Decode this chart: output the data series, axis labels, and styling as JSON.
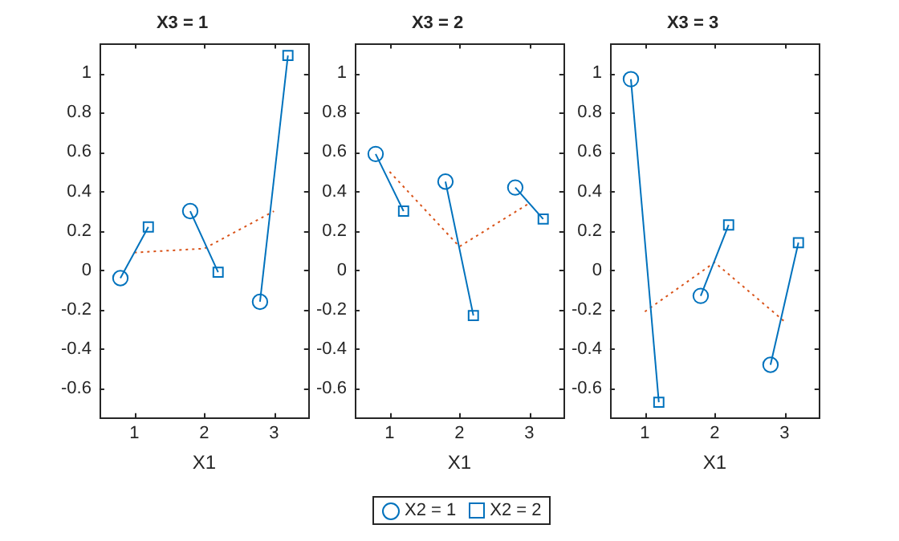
{
  "chart_data": [
    {
      "type": "scatter",
      "title": "X3 = 1",
      "xlabel": "X1",
      "xlim": [
        0.5,
        3.5
      ],
      "xticks": [
        1,
        2,
        3
      ],
      "ylim": [
        -0.75,
        1.15
      ],
      "yticks": [
        -0.6,
        -0.4,
        -0.2,
        0,
        0.2,
        0.4,
        0.6,
        0.8,
        1
      ],
      "grid": false,
      "legend": false,
      "series": [
        {
          "type": "line",
          "color": "#0072bd",
          "marker": "none",
          "line_style": "solid",
          "x": [
            0.8,
            1.2
          ],
          "values": [
            -0.04,
            0.22
          ]
        },
        {
          "type": "line",
          "color": "#0072bd",
          "marker": "none",
          "line_style": "solid",
          "x": [
            1.8,
            2.2
          ],
          "values": [
            0.3,
            -0.01
          ]
        },
        {
          "type": "line",
          "color": "#0072bd",
          "marker": "none",
          "line_style": "solid",
          "x": [
            2.8,
            3.2
          ],
          "values": [
            -0.16,
            1.09
          ]
        },
        {
          "type": "line",
          "color": "#d95319",
          "marker": "none",
          "line_style": "dotted",
          "x": [
            1,
            2,
            3
          ],
          "values": [
            0.09,
            0.11,
            0.3
          ]
        },
        {
          "type": "scatter",
          "color": "#0072bd",
          "marker": "circle",
          "x": [
            0.8,
            1.8,
            2.8
          ],
          "values": [
            -0.04,
            0.3,
            -0.16
          ]
        },
        {
          "type": "scatter",
          "color": "#0072bd",
          "marker": "square",
          "x": [
            1.2,
            2.2,
            3.2
          ],
          "values": [
            0.22,
            -0.01,
            1.09
          ]
        }
      ]
    },
    {
      "type": "scatter",
      "title": "X3 = 2",
      "xlabel": "X1",
      "xlim": [
        0.5,
        3.5
      ],
      "xticks": [
        1,
        2,
        3
      ],
      "ylim": [
        -0.75,
        1.15
      ],
      "yticks": [
        -0.6,
        -0.4,
        -0.2,
        0,
        0.2,
        0.4,
        0.6,
        0.8,
        1
      ],
      "grid": false,
      "legend": "bottom",
      "series": [
        {
          "type": "line",
          "color": "#0072bd",
          "marker": "none",
          "line_style": "solid",
          "x": [
            0.8,
            1.2
          ],
          "values": [
            0.59,
            0.3
          ]
        },
        {
          "type": "line",
          "color": "#0072bd",
          "marker": "none",
          "line_style": "solid",
          "x": [
            1.8,
            2.2
          ],
          "values": [
            0.45,
            -0.23
          ]
        },
        {
          "type": "line",
          "color": "#0072bd",
          "marker": "none",
          "line_style": "solid",
          "x": [
            2.8,
            3.2
          ],
          "values": [
            0.42,
            0.26
          ]
        },
        {
          "type": "line",
          "color": "#d95319",
          "marker": "none",
          "line_style": "dotted",
          "x": [
            1,
            2,
            3
          ],
          "values": [
            0.5,
            0.12,
            0.34
          ]
        },
        {
          "type": "scatter",
          "name": "X2 = 1",
          "color": "#0072bd",
          "marker": "circle",
          "x": [
            0.8,
            1.8,
            2.8
          ],
          "values": [
            0.59,
            0.45,
            0.42
          ]
        },
        {
          "type": "scatter",
          "name": "X2 = 2",
          "color": "#0072bd",
          "marker": "square",
          "x": [
            1.2,
            2.2,
            3.2
          ],
          "values": [
            0.3,
            -0.23,
            0.26
          ]
        }
      ]
    },
    {
      "type": "scatter",
      "title": "X3 = 3",
      "xlabel": "X1",
      "xlim": [
        0.5,
        3.5
      ],
      "xticks": [
        1,
        2,
        3
      ],
      "ylim": [
        -0.75,
        1.15
      ],
      "yticks": [
        -0.6,
        -0.4,
        -0.2,
        0,
        0.2,
        0.4,
        0.6,
        0.8,
        1
      ],
      "grid": false,
      "legend": false,
      "series": [
        {
          "type": "line",
          "color": "#0072bd",
          "marker": "none",
          "line_style": "solid",
          "x": [
            0.8,
            1.2
          ],
          "values": [
            0.97,
            -0.67
          ]
        },
        {
          "type": "line",
          "color": "#0072bd",
          "marker": "none",
          "line_style": "solid",
          "x": [
            1.8,
            2.2
          ],
          "values": [
            -0.13,
            0.23
          ]
        },
        {
          "type": "line",
          "color": "#0072bd",
          "marker": "none",
          "line_style": "solid",
          "x": [
            2.8,
            3.2
          ],
          "values": [
            -0.48,
            0.14
          ]
        },
        {
          "type": "line",
          "color": "#d95319",
          "marker": "none",
          "line_style": "dotted",
          "x": [
            1,
            2,
            3
          ],
          "values": [
            -0.21,
            0.04,
            -0.26
          ]
        },
        {
          "type": "scatter",
          "color": "#0072bd",
          "marker": "circle",
          "x": [
            0.8,
            1.8,
            2.8
          ],
          "values": [
            0.97,
            -0.13,
            -0.48
          ]
        },
        {
          "type": "scatter",
          "color": "#0072bd",
          "marker": "square",
          "x": [
            1.2,
            2.2,
            3.2
          ],
          "values": [
            -0.67,
            0.23,
            0.14
          ]
        }
      ]
    }
  ]
}
